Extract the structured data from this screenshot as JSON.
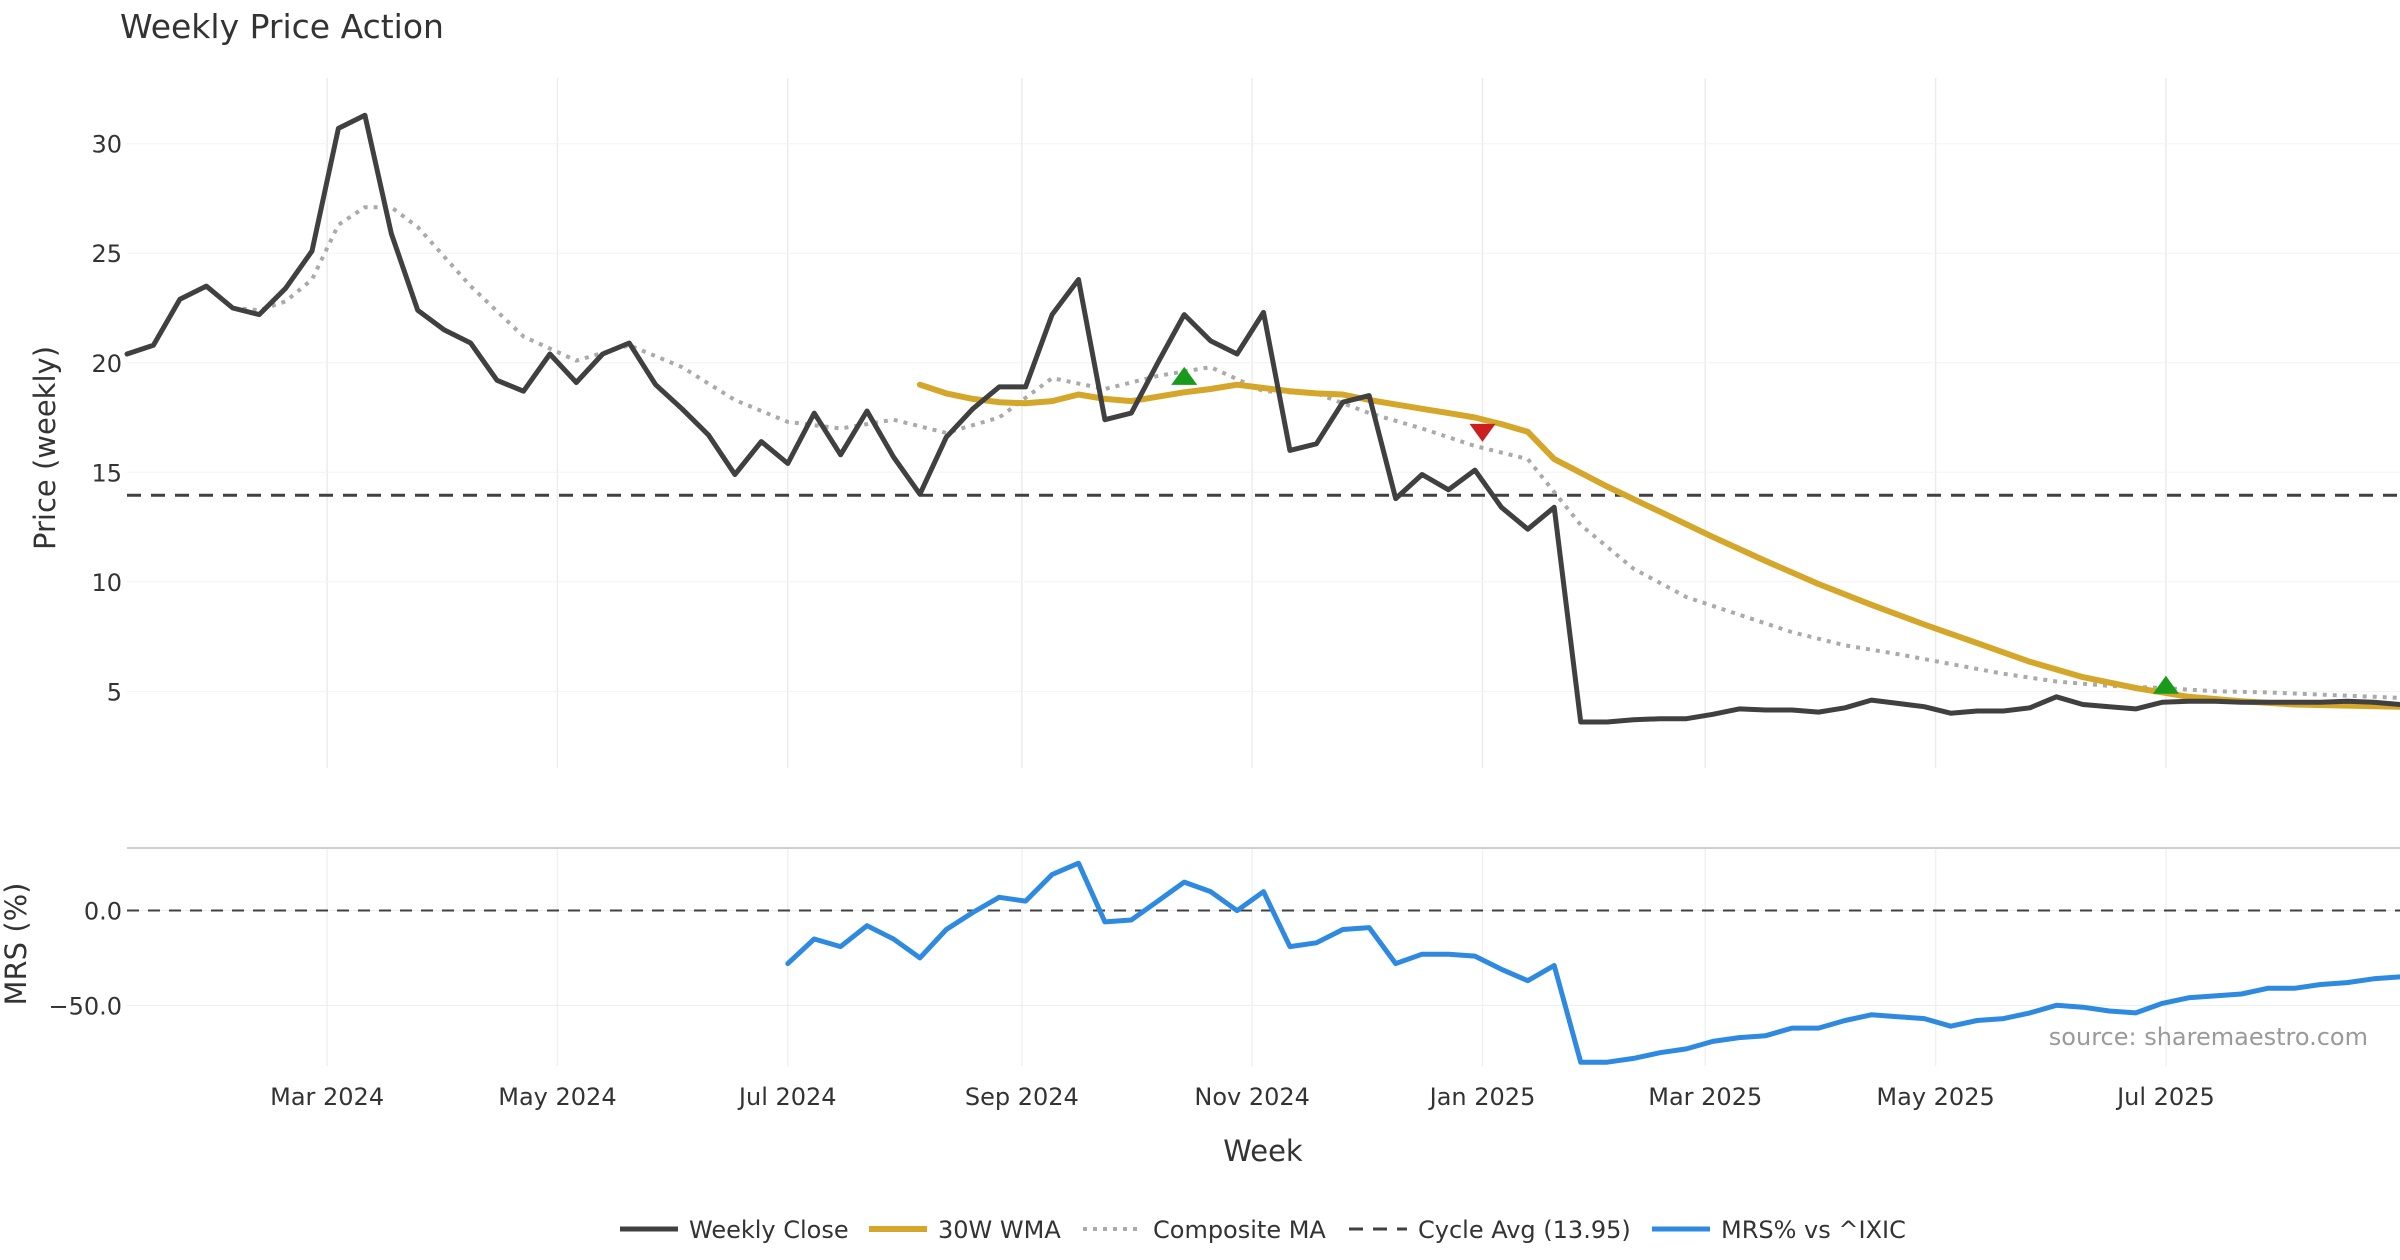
{
  "chart_data": {
    "type": "line",
    "title": "Weekly Price Action",
    "xlabel": "Week",
    "source": "source: sharemaestro.com",
    "x_tick_labels": [
      "Mar 2024",
      "May 2024",
      "Jul 2024",
      "Sep 2024",
      "Nov 2024",
      "Jan 2025",
      "Mar 2025",
      "May 2025",
      "Jul 2025"
    ],
    "x_tick_dates": [
      "2024-03-01",
      "2024-05-01",
      "2024-07-01",
      "2024-09-01",
      "2024-11-01",
      "2025-01-01",
      "2025-03-01",
      "2025-05-01",
      "2025-07-01"
    ],
    "x_range": [
      "2024-01-08",
      "2025-09-01"
    ],
    "grid": true,
    "legend_position": "bottom-center",
    "panels": {
      "price": {
        "ylabel": "Price (weekly)",
        "ylim": [
          1.5,
          33
        ],
        "y_ticks": [
          5,
          10,
          15,
          20,
          25,
          30
        ]
      },
      "mrs": {
        "ylabel": "MRS (%)",
        "ylim": [
          -82,
          33
        ],
        "y_ticks": [
          0,
          -50
        ],
        "y_tick_labels": [
          "0.0",
          "−50.0"
        ]
      }
    },
    "cycle_avg": 13.95,
    "mrs_zero": 0,
    "weekly_close": {
      "name": "Weekly Close",
      "color": "#404040",
      "x": [
        "2024-01-08",
        "2024-01-15",
        "2024-01-22",
        "2024-01-29",
        "2024-02-05",
        "2024-02-12",
        "2024-02-19",
        "2024-02-26",
        "2024-03-04",
        "2024-03-11",
        "2024-03-18",
        "2024-03-25",
        "2024-04-01",
        "2024-04-08",
        "2024-04-15",
        "2024-04-22",
        "2024-04-29",
        "2024-05-06",
        "2024-05-13",
        "2024-05-20",
        "2024-05-27",
        "2024-06-03",
        "2024-06-10",
        "2024-06-17",
        "2024-06-24",
        "2024-07-01",
        "2024-07-08",
        "2024-07-15",
        "2024-07-22",
        "2024-07-29",
        "2024-08-05",
        "2024-08-12",
        "2024-08-19",
        "2024-08-26",
        "2024-09-02",
        "2024-09-09",
        "2024-09-16",
        "2024-09-23",
        "2024-09-30",
        "2024-10-07",
        "2024-10-14",
        "2024-10-21",
        "2024-10-28",
        "2024-11-04",
        "2024-11-11",
        "2024-11-18",
        "2024-11-25",
        "2024-12-02",
        "2024-12-09",
        "2024-12-16",
        "2024-12-23",
        "2024-12-30",
        "2025-01-06",
        "2025-01-13",
        "2025-01-20",
        "2025-01-27",
        "2025-02-03",
        "2025-02-10",
        "2025-02-17",
        "2025-02-24",
        "2025-03-03",
        "2025-03-10",
        "2025-03-17",
        "2025-03-24",
        "2025-03-31",
        "2025-04-07",
        "2025-04-14",
        "2025-04-21",
        "2025-04-28",
        "2025-05-05",
        "2025-05-12",
        "2025-05-19",
        "2025-05-26",
        "2025-06-02",
        "2025-06-09",
        "2025-06-16",
        "2025-06-23",
        "2025-06-30",
        "2025-07-07",
        "2025-07-14",
        "2025-07-21",
        "2025-07-28",
        "2025-08-04",
        "2025-08-11",
        "2025-08-18",
        "2025-08-25",
        "2025-09-01"
      ],
      "y": [
        20.4,
        20.8,
        22.9,
        23.5,
        22.5,
        22.2,
        23.4,
        25.1,
        30.7,
        31.3,
        25.9,
        22.4,
        21.5,
        20.9,
        19.2,
        18.7,
        20.4,
        19.1,
        20.4,
        20.9,
        19.0,
        17.9,
        16.7,
        14.9,
        16.4,
        15.4,
        17.7,
        15.8,
        17.8,
        15.7,
        14.0,
        16.6,
        17.9,
        18.9,
        18.9,
        22.2,
        23.8,
        17.4,
        17.7,
        20.0,
        22.2,
        21.0,
        20.4,
        22.3,
        16.0,
        16.3,
        18.2,
        18.5,
        13.8,
        14.9,
        14.2,
        15.1,
        13.4,
        12.4,
        13.4,
        3.6,
        3.6,
        3.7,
        3.75,
        3.75,
        3.95,
        4.2,
        4.15,
        4.15,
        4.05,
        4.25,
        4.6,
        4.45,
        4.3,
        4.0,
        4.1,
        4.1,
        4.25,
        4.75,
        4.4,
        4.3,
        4.2,
        4.5,
        4.55,
        4.55,
        4.5,
        4.5,
        4.5,
        4.5,
        4.55,
        4.5,
        4.4
      ]
    },
    "wma_30w": {
      "name": "30W WMA",
      "color": "#d4a62a",
      "x": [
        "2024-08-05",
        "2024-08-12",
        "2024-08-19",
        "2024-08-26",
        "2024-09-02",
        "2024-09-09",
        "2024-09-16",
        "2024-09-23",
        "2024-09-30",
        "2024-10-07",
        "2024-10-14",
        "2024-10-21",
        "2024-10-28",
        "2024-11-04",
        "2024-11-11",
        "2024-11-18",
        "2024-11-25",
        "2024-12-02",
        "2024-12-09",
        "2024-12-16",
        "2024-12-23",
        "2024-12-30",
        "2025-01-06",
        "2025-01-13",
        "2025-01-20",
        "2025-02-03",
        "2025-02-17",
        "2025-03-03",
        "2025-03-17",
        "2025-03-31",
        "2025-04-14",
        "2025-04-28",
        "2025-05-12",
        "2025-05-26",
        "2025-06-09",
        "2025-06-23",
        "2025-07-07",
        "2025-07-21",
        "2025-08-04",
        "2025-08-18",
        "2025-09-01"
      ],
      "y": [
        19.0,
        18.6,
        18.35,
        18.2,
        18.15,
        18.25,
        18.55,
        18.35,
        18.25,
        18.45,
        18.65,
        18.8,
        19.0,
        18.85,
        18.7,
        18.6,
        18.55,
        18.3,
        18.1,
        17.9,
        17.7,
        17.5,
        17.2,
        16.85,
        15.6,
        14.35,
        13.2,
        12.05,
        10.95,
        9.9,
        8.95,
        8.05,
        7.2,
        6.35,
        5.65,
        5.15,
        4.75,
        4.55,
        4.4,
        4.35,
        4.3
      ]
    },
    "composite_ma": {
      "name": "Composite MA",
      "color": "#aaaaaa",
      "x": [
        "2024-02-05",
        "2024-02-12",
        "2024-02-19",
        "2024-02-26",
        "2024-03-04",
        "2024-03-11",
        "2024-03-18",
        "2024-03-25",
        "2024-04-08",
        "2024-04-22",
        "2024-05-06",
        "2024-05-20",
        "2024-06-03",
        "2024-06-17",
        "2024-07-01",
        "2024-07-15",
        "2024-07-29",
        "2024-08-12",
        "2024-08-26",
        "2024-09-09",
        "2024-09-23",
        "2024-10-07",
        "2024-10-21",
        "2024-11-04",
        "2024-11-18",
        "2024-12-02",
        "2024-12-16",
        "2024-12-30",
        "2025-01-13",
        "2025-01-20",
        "2025-01-27",
        "2025-02-10",
        "2025-02-24",
        "2025-03-10",
        "2025-03-24",
        "2025-04-07",
        "2025-04-21",
        "2025-05-05",
        "2025-05-19",
        "2025-06-02",
        "2025-06-16",
        "2025-06-30",
        "2025-07-14",
        "2025-07-28",
        "2025-08-11",
        "2025-08-25",
        "2025-09-01"
      ],
      "y": [
        22.5,
        22.4,
        22.8,
        23.8,
        26.3,
        27.1,
        27.1,
        26.2,
        23.5,
        21.2,
        20.1,
        20.8,
        19.8,
        18.3,
        17.3,
        17.0,
        17.4,
        16.8,
        17.5,
        19.3,
        18.8,
        19.4,
        19.8,
        18.7,
        18.6,
        17.7,
        17.0,
        16.2,
        15.6,
        14.1,
        12.6,
        10.6,
        9.3,
        8.5,
        7.7,
        7.1,
        6.7,
        6.25,
        5.8,
        5.45,
        5.25,
        5.15,
        5.0,
        4.95,
        4.85,
        4.75,
        4.7
      ]
    },
    "mrs": {
      "name": "MRS% vs ^IXIC",
      "color": "#2e8ae0",
      "x": [
        "2024-07-01",
        "2024-07-08",
        "2024-07-15",
        "2024-07-22",
        "2024-07-29",
        "2024-08-05",
        "2024-08-12",
        "2024-08-19",
        "2024-08-26",
        "2024-09-02",
        "2024-09-09",
        "2024-09-16",
        "2024-09-23",
        "2024-09-30",
        "2024-10-07",
        "2024-10-14",
        "2024-10-21",
        "2024-10-28",
        "2024-11-04",
        "2024-11-11",
        "2024-11-18",
        "2024-11-25",
        "2024-12-02",
        "2024-12-09",
        "2024-12-16",
        "2024-12-23",
        "2024-12-30",
        "2025-01-06",
        "2025-01-13",
        "2025-01-20",
        "2025-01-27",
        "2025-02-03",
        "2025-02-10",
        "2025-02-17",
        "2025-02-24",
        "2025-03-03",
        "2025-03-10",
        "2025-03-17",
        "2025-03-24",
        "2025-03-31",
        "2025-04-07",
        "2025-04-14",
        "2025-04-21",
        "2025-04-28",
        "2025-05-05",
        "2025-05-12",
        "2025-05-19",
        "2025-05-26",
        "2025-06-02",
        "2025-06-09",
        "2025-06-16",
        "2025-06-23",
        "2025-06-30",
        "2025-07-07",
        "2025-07-14",
        "2025-07-21",
        "2025-07-28",
        "2025-08-04",
        "2025-08-11",
        "2025-08-18",
        "2025-08-25",
        "2025-09-01"
      ],
      "y": [
        -28,
        -15,
        -19,
        -8,
        -15,
        -25,
        -10,
        -1,
        7,
        5,
        19,
        25,
        -6,
        -5,
        5,
        15,
        10,
        0,
        10,
        -19,
        -17,
        -10,
        -9,
        -28,
        -23,
        -23,
        -24,
        -31,
        -37,
        -29,
        -80,
        -80,
        -78,
        -75,
        -73,
        -69,
        -67,
        -66,
        -62,
        -62,
        -58,
        -55,
        -56,
        -57,
        -61,
        -58,
        -57,
        -54,
        -50,
        -51,
        -53,
        -54,
        -49,
        -46,
        -45,
        -44,
        -41,
        -41,
        -39,
        -38,
        -36,
        -35
      ]
    },
    "signals": [
      {
        "type": "buy",
        "x": "2024-10-14",
        "y": 19.4,
        "color": "#1a9a1a"
      },
      {
        "type": "sell",
        "x": "2025-01-01",
        "y": 16.8,
        "color": "#cc1f1f"
      },
      {
        "type": "buy",
        "x": "2025-07-01",
        "y": 5.3,
        "color": "#1a9a1a"
      }
    ],
    "legend": [
      "Weekly Close",
      "30W WMA",
      "Composite MA",
      "Cycle Avg (13.95)",
      "MRS% vs ^IXIC"
    ]
  }
}
